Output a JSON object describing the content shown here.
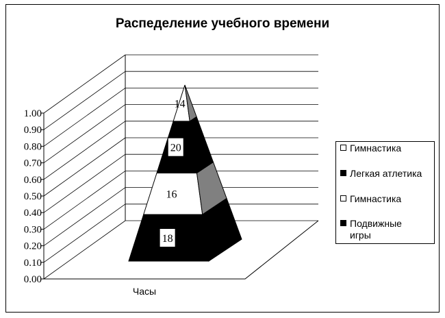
{
  "chart_data": {
    "type": "pyramid-stacked-100",
    "title": "Распеделение учебного времени",
    "categories": [
      "Часы"
    ],
    "series": [
      {
        "name": "Подвижные игры",
        "values": [
          18
        ],
        "color": "#000000"
      },
      {
        "name": "Гимнастика",
        "values": [
          16
        ],
        "color": "#ffffff"
      },
      {
        "name": "Легкая атлетика",
        "values": [
          20
        ],
        "color": "#000000"
      },
      {
        "name": "Гимнастика",
        "values": [
          14
        ],
        "color": "#ffffff"
      }
    ],
    "data_labels": [
      "18",
      "16",
      "20",
      "14"
    ],
    "y_ticks": [
      "0.00",
      "0.10",
      "0.20",
      "0.30",
      "0.40",
      "0.50",
      "0.60",
      "0.70",
      "0.80",
      "0.90",
      "1.00"
    ],
    "ylim": [
      0,
      1
    ],
    "grid": true,
    "legend_position": "right",
    "legend": [
      "Гимнастика",
      "Легкая атлетика",
      "Гимнастика",
      "Подвижные игры"
    ]
  }
}
